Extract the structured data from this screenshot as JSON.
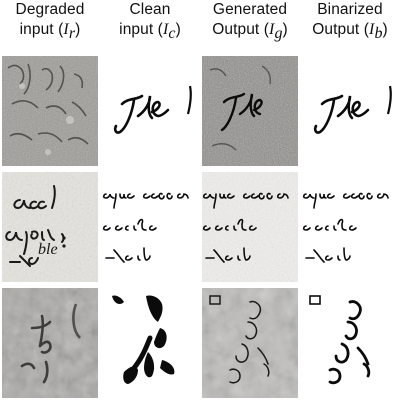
{
  "columns": [
    {
      "line1": "Degraded",
      "line2_pre": "input (",
      "symbol": "I",
      "sub": "r",
      "line2_post": ")"
    },
    {
      "line1": "Clean",
      "line2_pre": "input (",
      "symbol": "I",
      "sub": "c",
      "line2_post": ")"
    },
    {
      "line1": "Generated",
      "line2_pre": "Output (",
      "symbol": "I",
      "sub": "g",
      "line2_post": ")"
    },
    {
      "line1": "Binarized",
      "line2_pre": "Output (",
      "symbol": "I",
      "sub": "b",
      "line2_post": ")"
    }
  ],
  "rows": [
    {
      "handwriting": "The"
    },
    {
      "handwriting": "acque cesso"
    },
    {
      "handwriting": "stroke"
    }
  ],
  "colors": {
    "ink": "#0b0b0b",
    "paper_light": "#f2f1ee",
    "paper_gray": "#b9b9b6",
    "paper_dark": "#8a8a88"
  }
}
